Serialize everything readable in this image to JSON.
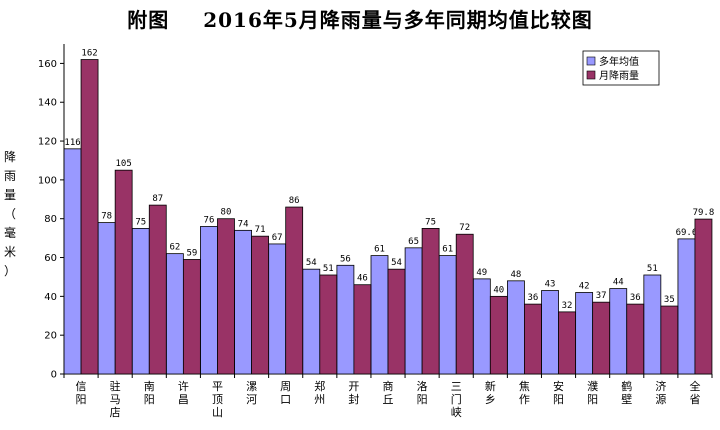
{
  "title_prefix": "附图",
  "title_main": "2016年5月降雨量与多年同期均值比较图",
  "chart_data": {
    "type": "bar",
    "title": "2016年5月降雨量与多年同期均值比较图",
    "ylabel": [
      "降",
      "雨",
      "量",
      "（",
      "毫",
      "米",
      "）"
    ],
    "xlabel": "",
    "ylim": [
      0,
      170
    ],
    "yticks": [
      0,
      20,
      40,
      60,
      80,
      100,
      120,
      140,
      160
    ],
    "grid": false,
    "legend_position": "top-right",
    "categories": [
      [
        "信",
        "阳"
      ],
      [
        "驻",
        "马",
        "店"
      ],
      [
        "南",
        "阳"
      ],
      [
        "许",
        "昌"
      ],
      [
        "平",
        "顶",
        "山"
      ],
      [
        "漯",
        "河"
      ],
      [
        "周",
        "口"
      ],
      [
        "郑",
        "州"
      ],
      [
        "开",
        "封"
      ],
      [
        "商",
        "丘"
      ],
      [
        "洛",
        "阳"
      ],
      [
        "三",
        "门",
        "峡"
      ],
      [
        "新",
        "乡"
      ],
      [
        "焦",
        "作"
      ],
      [
        "安",
        "阳"
      ],
      [
        "濮",
        "阳"
      ],
      [
        "鹤",
        "壁"
      ],
      [
        "济",
        "源"
      ],
      [
        "全",
        "省"
      ]
    ],
    "series": [
      {
        "name": "多年均值",
        "color": "#9999ff",
        "values": [
          116,
          78,
          75,
          62,
          76,
          74,
          67,
          54,
          56,
          61,
          65,
          61,
          49,
          48,
          43,
          42,
          44,
          51,
          69.6
        ],
        "labels": [
          "116",
          "78",
          "75",
          "62",
          "76",
          "74",
          "67",
          "54",
          "56",
          "61",
          "65",
          "61",
          "49",
          "48",
          "43",
          "42",
          "44",
          "51",
          "69.6"
        ]
      },
      {
        "name": "月降雨量",
        "color": "#993366",
        "values": [
          162,
          105,
          87,
          59,
          80,
          71,
          86,
          51,
          46,
          54,
          75,
          72,
          40,
          36,
          32,
          37,
          36,
          35,
          79.8
        ],
        "labels": [
          "162",
          "105",
          "87",
          "59",
          "80",
          "71",
          "86",
          "51",
          "46",
          "54",
          "75",
          "72",
          "40",
          "36",
          "32",
          "37",
          "36",
          "35",
          "79.8"
        ]
      }
    ]
  }
}
